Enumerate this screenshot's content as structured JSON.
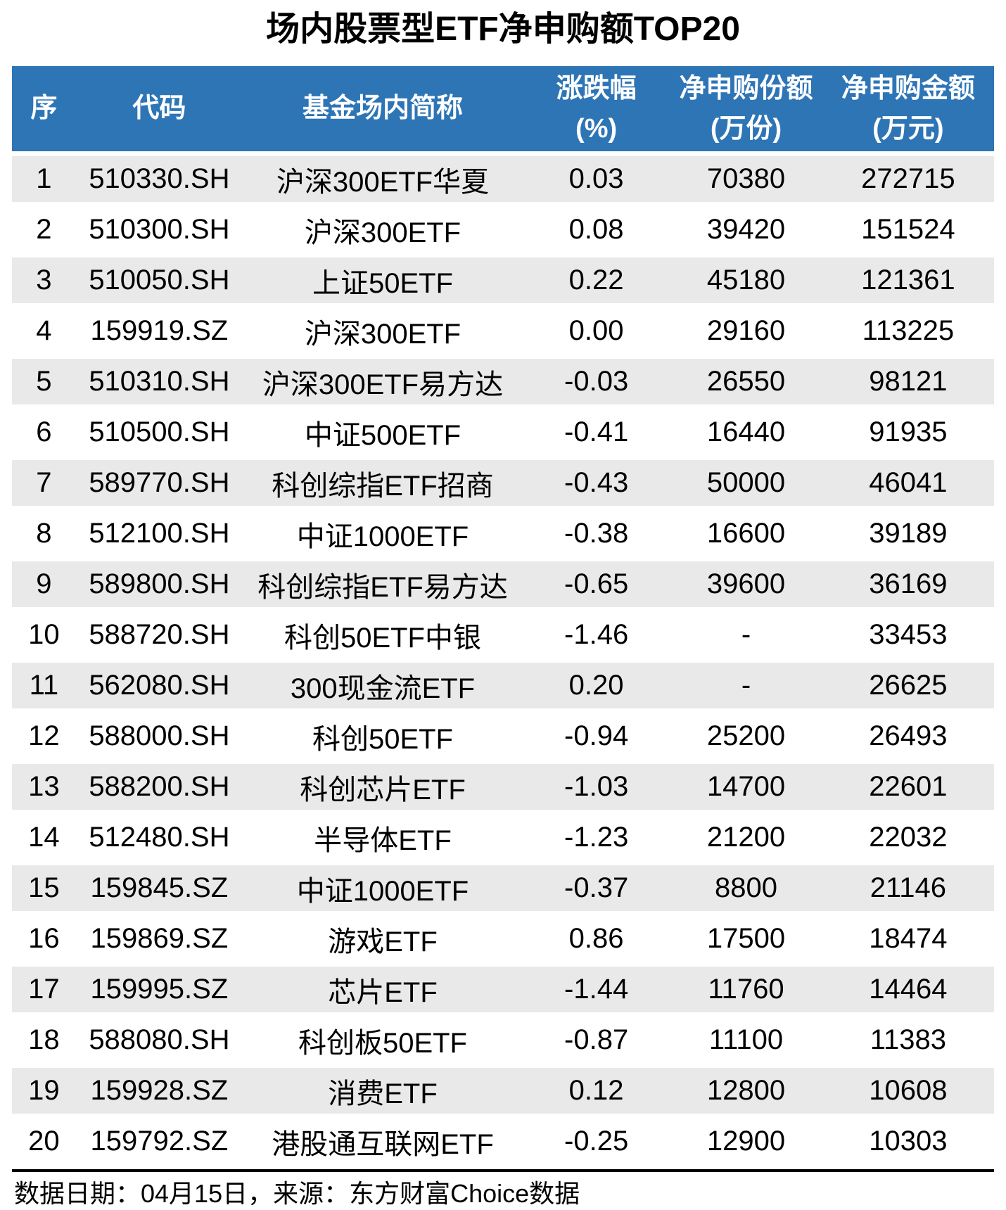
{
  "title": "场内股票型ETF净申购额TOP20",
  "colors": {
    "header_bg": "#2E75B6",
    "header_text": "#ffffff",
    "row_alt_bg": "#E9E9E9",
    "row_bg": "#ffffff",
    "body_text": "#000000",
    "divider": "#000000"
  },
  "header": {
    "cols": [
      {
        "l1": "序",
        "l2": ""
      },
      {
        "l1": "代码",
        "l2": ""
      },
      {
        "l1": "基金场内简称",
        "l2": ""
      },
      {
        "l1": "涨跌幅",
        "l2": "(%)"
      },
      {
        "l1": "净申购份额",
        "l2": "(万份)"
      },
      {
        "l1": "净申购金额",
        "l2": "(万元)"
      }
    ]
  },
  "chart_data": {
    "type": "table",
    "title": "场内股票型ETF净申购额TOP20",
    "columns": [
      "序",
      "代码",
      "基金场内简称",
      "涨跌幅(%)",
      "净申购份额(万份)",
      "净申购金额(万元)"
    ],
    "rows": [
      [
        "1",
        "510330.SH",
        "沪深300ETF华夏",
        "0.03",
        "70380",
        "272715"
      ],
      [
        "2",
        "510300.SH",
        "沪深300ETF",
        "0.08",
        "39420",
        "151524"
      ],
      [
        "3",
        "510050.SH",
        "上证50ETF",
        "0.22",
        "45180",
        "121361"
      ],
      [
        "4",
        "159919.SZ",
        "沪深300ETF",
        "0.00",
        "29160",
        "113225"
      ],
      [
        "5",
        "510310.SH",
        "沪深300ETF易方达",
        "-0.03",
        "26550",
        "98121"
      ],
      [
        "6",
        "510500.SH",
        "中证500ETF",
        "-0.41",
        "16440",
        "91935"
      ],
      [
        "7",
        "589770.SH",
        "科创综指ETF招商",
        "-0.43",
        "50000",
        "46041"
      ],
      [
        "8",
        "512100.SH",
        "中证1000ETF",
        "-0.38",
        "16600",
        "39189"
      ],
      [
        "9",
        "589800.SH",
        "科创综指ETF易方达",
        "-0.65",
        "39600",
        "36169"
      ],
      [
        "10",
        "588720.SH",
        "科创50ETF中银",
        "-1.46",
        "-",
        "33453"
      ],
      [
        "11",
        "562080.SH",
        "300现金流ETF",
        "0.20",
        "-",
        "26625"
      ],
      [
        "12",
        "588000.SH",
        "科创50ETF",
        "-0.94",
        "25200",
        "26493"
      ],
      [
        "13",
        "588200.SH",
        "科创芯片ETF",
        "-1.03",
        "14700",
        "22601"
      ],
      [
        "14",
        "512480.SH",
        "半导体ETF",
        "-1.23",
        "21200",
        "22032"
      ],
      [
        "15",
        "159845.SZ",
        "中证1000ETF",
        "-0.37",
        "8800",
        "21146"
      ],
      [
        "16",
        "159869.SZ",
        "游戏ETF",
        "0.86",
        "17500",
        "18474"
      ],
      [
        "17",
        "159995.SZ",
        "芯片ETF",
        "-1.44",
        "11760",
        "14464"
      ],
      [
        "18",
        "588080.SH",
        "科创板50ETF",
        "-0.87",
        "11100",
        "11383"
      ],
      [
        "19",
        "159928.SZ",
        "消费ETF",
        "0.12",
        "12800",
        "10608"
      ],
      [
        "20",
        "159792.SZ",
        "港股通互联网ETF",
        "-0.25",
        "12900",
        "10303"
      ]
    ],
    "footnote": "数据日期：04月15日，来源：东方财富Choice数据"
  }
}
